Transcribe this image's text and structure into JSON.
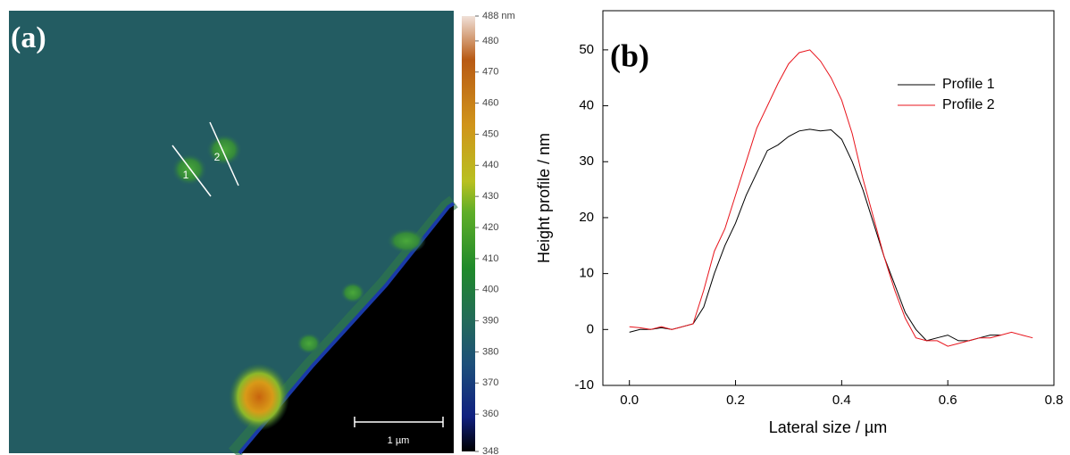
{
  "chart_data": [
    {
      "type": "image",
      "title": "(a)",
      "colorbar": {
        "lim": [
          348,
          488
        ],
        "ticks": [
          348,
          360,
          370,
          380,
          390,
          400,
          410,
          420,
          430,
          440,
          450,
          460,
          470,
          480,
          {
            "value": 488,
            "label": "488 nm"
          }
        ]
      },
      "annotations": [
        "1",
        "2"
      ],
      "scale_bar": "1 µm"
    },
    {
      "type": "line",
      "title": "(b)",
      "xlabel": "Lateral size / µm",
      "ylabel": "Height profile / nm",
      "x": [
        0,
        0.02,
        0.04,
        0.06,
        0.08,
        0.1,
        0.12,
        0.14,
        0.16,
        0.18,
        0.2,
        0.22,
        0.24,
        0.26,
        0.28,
        0.3,
        0.32,
        0.34,
        0.36,
        0.38,
        0.4,
        0.42,
        0.44,
        0.46,
        0.48,
        0.5,
        0.52,
        0.54,
        0.56,
        0.58,
        0.6,
        0.62,
        0.64,
        0.66,
        0.68,
        0.7,
        0.72,
        0.74,
        0.76
      ],
      "series": [
        {
          "name": "Profile 1",
          "color": "#000000",
          "values": [
            -0.5,
            0,
            0,
            0.3,
            0,
            0.5,
            1,
            4,
            10,
            15,
            19,
            24,
            28,
            32,
            33,
            34.5,
            35.5,
            35.8,
            35.5,
            35.7,
            34,
            30,
            25,
            19,
            13,
            8,
            3,
            0,
            -2,
            -1.5,
            -1,
            -2,
            -2,
            -1.5,
            -1,
            -1,
            null,
            null,
            null
          ]
        },
        {
          "name": "Profile 2",
          "color": "#e8141c",
          "values": [
            0.5,
            0.3,
            0,
            0.5,
            0,
            0.5,
            1,
            7,
            14,
            18,
            24,
            30,
            36,
            40,
            44,
            47.5,
            49.5,
            50,
            48,
            45,
            41,
            35,
            27,
            20,
            13,
            7,
            2,
            -1.5,
            -2,
            -2,
            -3,
            -2.5,
            -2,
            -1.5,
            -1.5,
            -1,
            -0.5,
            -1,
            -1.5
          ]
        }
      ],
      "xlim": [
        -0.05,
        0.8
      ],
      "xticks": [
        {
          "value": 0,
          "label": "0.0"
        },
        0.2,
        0.4,
        0.6,
        0.8
      ],
      "ylim": [
        -10,
        57
      ],
      "yticks": [
        -10,
        0,
        10,
        20,
        30,
        40,
        50
      ],
      "legend": "upper right"
    }
  ]
}
